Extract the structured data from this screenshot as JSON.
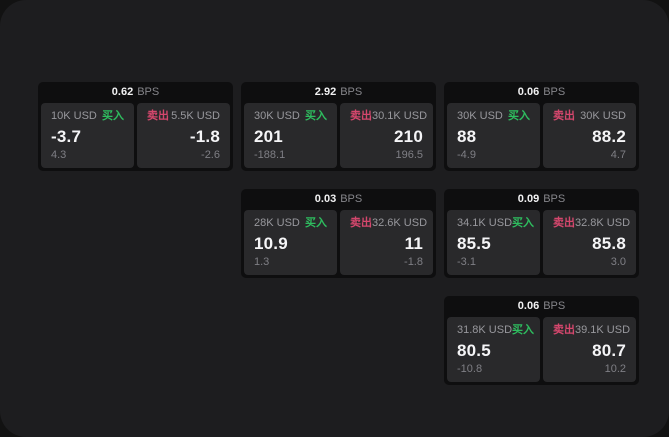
{
  "labels": {
    "bps": "BPS",
    "buy": "买入",
    "sell": "卖出"
  },
  "colors": {
    "buy_green": "#2ebd5f",
    "sell_red": "#d5476d",
    "window_bg": "#1d1d1f",
    "card_bg": "#0e0e0f",
    "panel_bg": "#29292b"
  },
  "cards": [
    {
      "bps": "0.62",
      "row": 1,
      "col": 1,
      "buy": {
        "amount": "10K USD",
        "value": "-3.7",
        "sub": "4.3"
      },
      "sell": {
        "amount": "5.5K USD",
        "value": "-1.8",
        "sub": "-2.6"
      }
    },
    {
      "bps": "2.92",
      "row": 1,
      "col": 2,
      "buy": {
        "amount": "30K USD",
        "value": "201",
        "sub": "-188.1"
      },
      "sell": {
        "amount": "30.1K USD",
        "value": "210",
        "sub": "196.5"
      }
    },
    {
      "bps": "0.06",
      "row": 1,
      "col": 3,
      "buy": {
        "amount": "30K USD",
        "value": "88",
        "sub": "-4.9"
      },
      "sell": {
        "amount": "30K USD",
        "value": "88.2",
        "sub": "4.7"
      }
    },
    {
      "bps": "0.03",
      "row": 2,
      "col": 2,
      "buy": {
        "amount": "28K USD",
        "value": "10.9",
        "sub": "1.3"
      },
      "sell": {
        "amount": "32.6K USD",
        "value": "11",
        "sub": "-1.8"
      }
    },
    {
      "bps": "0.09",
      "row": 2,
      "col": 3,
      "buy": {
        "amount": "34.1K USD",
        "value": "85.5",
        "sub": "-3.1"
      },
      "sell": {
        "amount": "32.8K USD",
        "value": "85.8",
        "sub": "3.0"
      }
    },
    {
      "bps": "0.06",
      "row": 3,
      "col": 3,
      "buy": {
        "amount": "31.8K USD",
        "value": "80.5",
        "sub": "-10.8"
      },
      "sell": {
        "amount": "39.1K USD",
        "value": "80.7",
        "sub": "10.2"
      }
    }
  ]
}
